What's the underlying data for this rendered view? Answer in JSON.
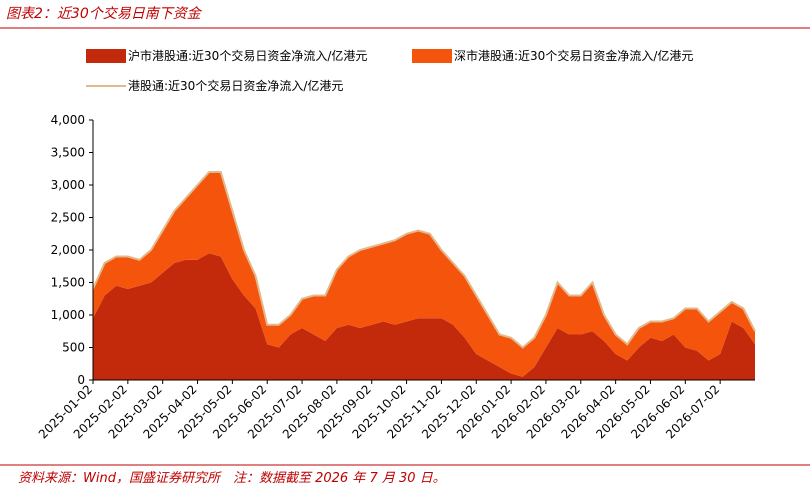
{
  "chart_data": {
    "type": "stacked-area-line",
    "title": "图表2：近30个交易日南下资金",
    "source": "资料来源：Wind，国盛证券研究所　注：数据截至 2026 年 7 月 30 日。",
    "categories": [
      "2025-01-02",
      null,
      null,
      "2025-02-02",
      null,
      null,
      "2025-03-02",
      null,
      null,
      "2025-04-02",
      null,
      null,
      "2025-05-02",
      null,
      null,
      "2025-06-02",
      null,
      null,
      "2025-07-02",
      null,
      null,
      "2025-08-02",
      null,
      null,
      "2025-09-02",
      null,
      null,
      "2025-10-02",
      null,
      null,
      "2025-11-02",
      null,
      null,
      "2025-12-02",
      null,
      null,
      "2026-01-02",
      null,
      null,
      "2026-02-02",
      null,
      null,
      "2026-03-02",
      null,
      null,
      "2026-04-02",
      null,
      null,
      "2026-05-02",
      null,
      null,
      "2026-06-02",
      null,
      null,
      "2026-07-02",
      null,
      null,
      null
    ],
    "series": [
      {
        "name": "沪市港股通:近30个交易日资金净流入/亿港元",
        "color": "#c32a0c",
        "kind": "area",
        "values": [
          950,
          1300,
          1450,
          1400,
          1450,
          1500,
          1650,
          1800,
          1850,
          1850,
          1950,
          1900,
          1550,
          1300,
          1100,
          550,
          500,
          700,
          800,
          700,
          600,
          800,
          850,
          800,
          850,
          900,
          850,
          900,
          950,
          950,
          950,
          850,
          650,
          400,
          300,
          200,
          100,
          50,
          200,
          500,
          800,
          700,
          700,
          750,
          600,
          400,
          300,
          500,
          650,
          600,
          700,
          500,
          450,
          300,
          400,
          900,
          800,
          550
        ]
      },
      {
        "name": "深市港股通:近30个交易日资金净流入/亿港元",
        "color": "#f5540d",
        "kind": "area",
        "values": [
          450,
          500,
          450,
          500,
          400,
          500,
          650,
          800,
          950,
          1150,
          1250,
          1300,
          1050,
          700,
          500,
          300,
          350,
          300,
          450,
          600,
          700,
          900,
          1050,
          1200,
          1200,
          1200,
          1300,
          1350,
          1350,
          1300,
          1050,
          950,
          950,
          900,
          700,
          500,
          550,
          450,
          450,
          500,
          700,
          600,
          600,
          750,
          400,
          300,
          250,
          300,
          250,
          300,
          250,
          600,
          650,
          600,
          650,
          300,
          300,
          200
        ]
      },
      {
        "name": "港股通:近30个交易日资金净流入/亿港元",
        "color": "#e2b98a",
        "kind": "line",
        "values": [
          1400,
          1800,
          1900,
          1900,
          1850,
          2000,
          2300,
          2600,
          2800,
          3000,
          3200,
          3200,
          2600,
          2000,
          1600,
          850,
          850,
          1000,
          1250,
          1300,
          1300,
          1700,
          1900,
          2000,
          2050,
          2100,
          2150,
          2250,
          2300,
          2250,
          2000,
          1800,
          1600,
          1300,
          1000,
          700,
          650,
          500,
          650,
          1000,
          1500,
          1300,
          1300,
          1500,
          1000,
          700,
          550,
          800,
          900,
          900,
          950,
          1100,
          1100,
          900,
          1050,
          1200,
          1100,
          750
        ]
      }
    ],
    "ylim": [
      0,
      4000
    ],
    "yticks": [
      0,
      500,
      {
        "value": 1000,
        "label": "1,000"
      },
      {
        "value": 1500,
        "label": "1,500"
      },
      {
        "value": 2000,
        "label": "2,000"
      },
      {
        "value": 2500,
        "label": "2,500"
      },
      {
        "value": 3000,
        "label": "3,000"
      },
      {
        "value": 3500,
        "label": "3,500"
      },
      {
        "value": 4000,
        "label": "4,000"
      }
    ]
  }
}
